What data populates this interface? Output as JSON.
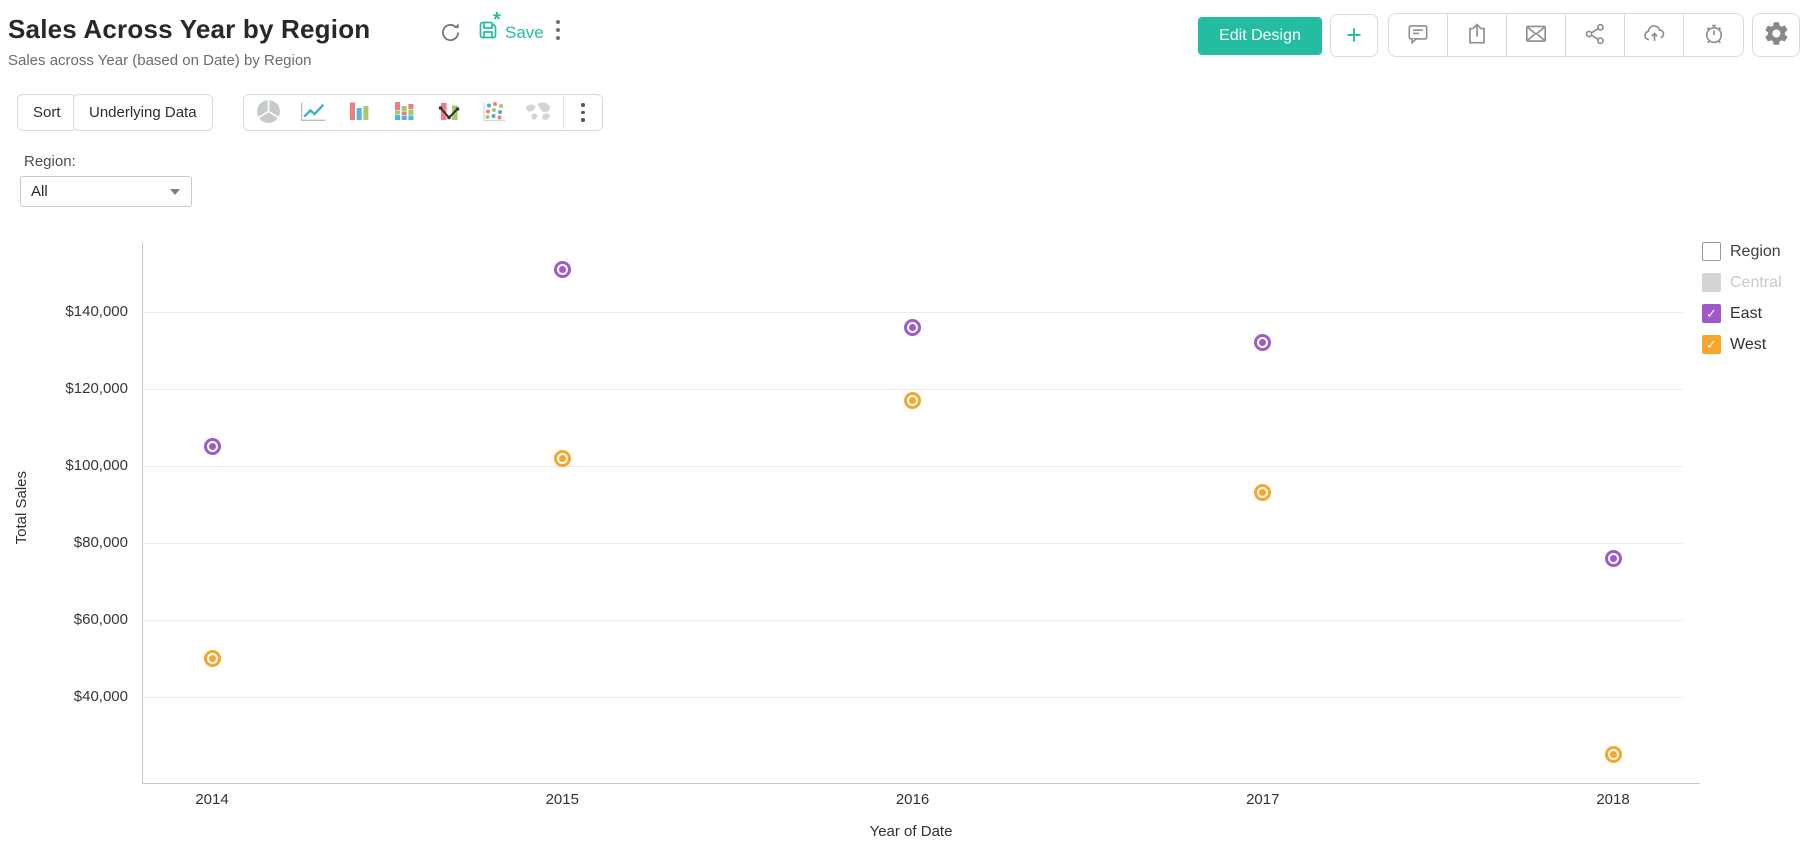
{
  "header": {
    "title": "Sales Across Year by Region",
    "subtitle": "Sales across Year (based on Date) by Region",
    "save_label": "Save",
    "edit_design_label": "Edit Design",
    "add_label": "+"
  },
  "toolbar": {
    "sort_label": "Sort",
    "underlying_data_label": "Underlying Data",
    "chart_types": [
      "pie",
      "line",
      "bar",
      "stacked-bar",
      "combo",
      "scatter",
      "map"
    ]
  },
  "filter": {
    "label": "Region:",
    "value": "All"
  },
  "legend": {
    "title": "Region",
    "items": [
      {
        "label": "Central",
        "color": "#d2d4d6",
        "checked": false,
        "muted": true
      },
      {
        "label": "East",
        "color": "#9e58c9",
        "checked": true,
        "muted": false
      },
      {
        "label": "West",
        "color": "#f8a62b",
        "checked": true,
        "muted": false
      }
    ]
  },
  "chart_data": {
    "type": "scatter",
    "x": [
      "2014",
      "2015",
      "2016",
      "2017",
      "2018"
    ],
    "series": [
      {
        "name": "East",
        "color": "#9d5ccd",
        "values": [
          105000,
          151000,
          136000,
          132000,
          76000
        ]
      },
      {
        "name": "West",
        "color": "#f8a62b",
        "values": [
          50000,
          102000,
          117000,
          93000,
          25000
        ]
      }
    ],
    "xlabel": "Year of Date",
    "ylabel": "Total Sales",
    "ylim": [
      17500,
      158000
    ],
    "yticks": [
      40000,
      60000,
      80000,
      100000,
      120000,
      140000
    ],
    "ytick_prefix": "$",
    "grid": "horizontal",
    "legend_position": "right"
  },
  "colors": {
    "accent": "#25bda2",
    "east": "#9d5ccd",
    "west": "#f8a62b",
    "muted": "#d2d4d6",
    "grid": "#e9ebec",
    "axis": "#c6cacd"
  }
}
